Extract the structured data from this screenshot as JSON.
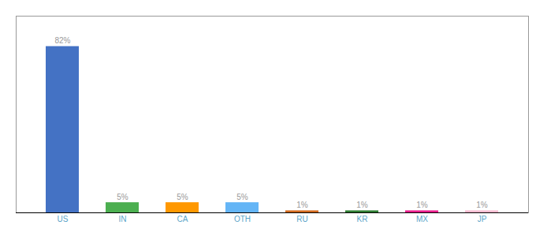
{
  "chart_data": {
    "type": "bar",
    "categories": [
      "US",
      "IN",
      "CA",
      "OTH",
      "RU",
      "KR",
      "MX",
      "JP"
    ],
    "values": [
      82,
      5,
      5,
      5,
      1,
      1,
      1,
      1
    ],
    "value_labels": [
      "82%",
      "5%",
      "5%",
      "5%",
      "1%",
      "1%",
      "1%",
      "1%"
    ],
    "colors": [
      "#4472C4",
      "#4CAF50",
      "#FF9800",
      "#64B5F6",
      "#D2691E",
      "#2E7D32",
      "#E91E8C",
      "#F8BBD0"
    ],
    "ylim": [
      0,
      97
    ],
    "grid": false,
    "data_labels": true,
    "tick_labels": "x"
  }
}
